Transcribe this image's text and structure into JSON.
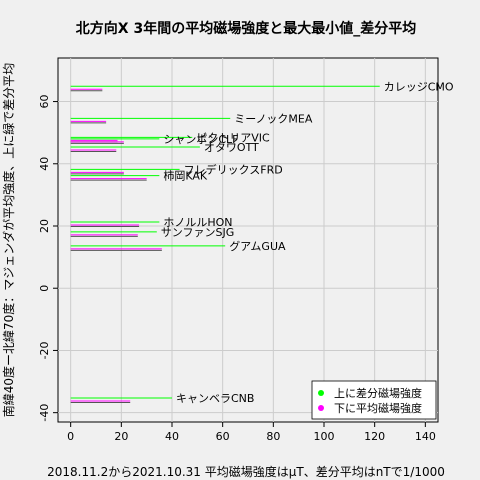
{
  "chart_data": {
    "type": "bar",
    "title": "北方向X 3年間の平均磁場強度と最大最小値_差分平均",
    "xlabel": "2018.11.2から2021.10.31 平均磁場強度はμT、差分平均はnTで1/1000",
    "ylabel": "南緯40度ー北緯70度：マジェンダが平均強度、上に緑で差分平均",
    "xlim": [
      -5,
      145
    ],
    "ylim": [
      -43,
      74
    ],
    "xticks": [
      0,
      20,
      40,
      60,
      80,
      100,
      120,
      140
    ],
    "yticks": [
      -40,
      -20,
      0,
      20,
      40,
      60
    ],
    "grid": true,
    "legend_position": "bottom-right",
    "series": [
      {
        "name": "上に差分磁場強度",
        "color": "#00ff00"
      },
      {
        "name": "下に平均磁場強度",
        "color": "#ff00ff"
      }
    ],
    "stations": [
      {
        "label": "カレッジCMO",
        "lat": 64.9,
        "diff": 122,
        "mean_min": 0,
        "mean_max": 12.5
      },
      {
        "label": "ミーノックMEA",
        "lat": 54.6,
        "diff": 63,
        "mean_min": 0,
        "mean_max": 14
      },
      {
        "label": "ビクトリアVIC",
        "lat": 48.5,
        "diff": 48,
        "mean_min": 0,
        "mean_max": 18.5
      },
      {
        "label": "シャンボンCLF",
        "lat": 48.0,
        "diff": 35,
        "mean_min": 0,
        "mean_max": 21
      },
      {
        "label": "オタワOTT",
        "lat": 45.4,
        "diff": 51,
        "mean_min": 0,
        "mean_max": 18
      },
      {
        "label": "フレデリックスFRD",
        "lat": 38.2,
        "diff": 43,
        "mean_min": 0,
        "mean_max": 21
      },
      {
        "label": "柿岡KAK",
        "lat": 36.2,
        "diff": 35,
        "mean_min": 0,
        "mean_max": 30
      },
      {
        "label": "ホノルルHON",
        "lat": 21.3,
        "diff": 35,
        "mean_min": 0,
        "mean_max": 27
      },
      {
        "label": "サンファンSJG",
        "lat": 18.1,
        "diff": 34,
        "mean_min": 0,
        "mean_max": 26.5
      },
      {
        "label": "グアムGUA",
        "lat": 13.6,
        "diff": 61,
        "mean_min": 0,
        "mean_max": 36
      },
      {
        "label": "キャンベラCNB",
        "lat": -35.3,
        "diff": 40,
        "mean_min": 0,
        "mean_max": 23.5
      }
    ]
  }
}
